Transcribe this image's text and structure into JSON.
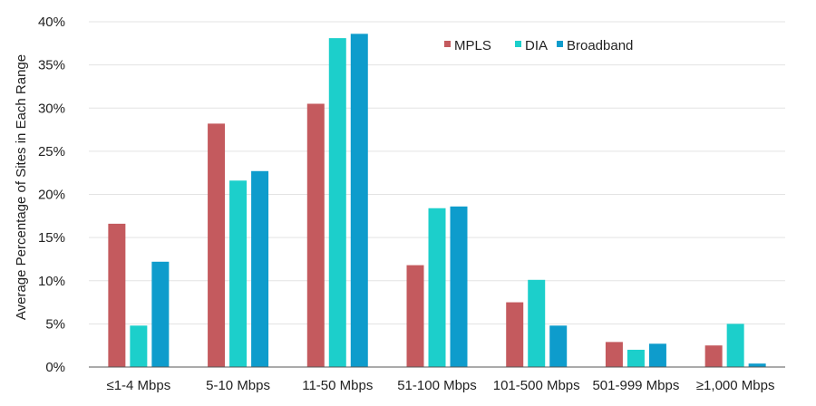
{
  "chart_data": {
    "type": "bar",
    "title": "",
    "xlabel": "",
    "ylabel": "Average Percentage of Sites in Each Range",
    "ylim": [
      0,
      40
    ],
    "y_ticks": [
      "0%",
      "5%",
      "10%",
      "15%",
      "20%",
      "25%",
      "30%",
      "35%",
      "40%"
    ],
    "grid": true,
    "legend_position": "top-right",
    "categories": [
      "≤1-4 Mbps",
      "5-10 Mbps",
      "11-50 Mbps",
      "51-100 Mbps",
      "101-500 Mbps",
      "501-999 Mbps",
      "≥1,000 Mbps"
    ],
    "series": [
      {
        "name": "MPLS",
        "color": "#c45a5e",
        "values": [
          16.6,
          28.2,
          30.5,
          11.8,
          7.5,
          2.9,
          2.5
        ]
      },
      {
        "name": "DIA",
        "color": "#1ccfcb",
        "values": [
          4.8,
          21.6,
          38.1,
          18.4,
          10.1,
          2.0,
          5.0
        ]
      },
      {
        "name": "Broadband",
        "color": "#0e9ccc",
        "values": [
          12.2,
          22.7,
          38.6,
          18.6,
          4.8,
          2.7,
          0.4
        ]
      }
    ]
  }
}
